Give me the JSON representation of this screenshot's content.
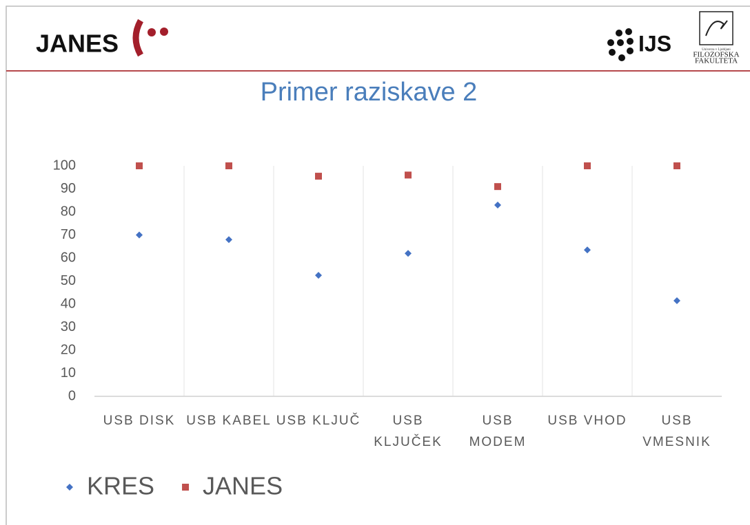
{
  "header": {
    "logo_left": "JANES",
    "logo_right": "IJS",
    "faculty_top": "Univerza v Ljubljani",
    "faculty_name_1": "FILOZOFSKA",
    "faculty_name_2": "FAKULTETA"
  },
  "chart_data": {
    "type": "scatter",
    "title": "Primer raziskave 2",
    "categories": [
      "USB DISK",
      "USB KABEL",
      "USB KLJUČ",
      "USB KLJUČEK",
      "USB MODEM",
      "USB VHOD",
      "USB VMESNIK"
    ],
    "series": [
      {
        "name": "KRES",
        "color": "#4472c4",
        "marker": "diamond",
        "values": [
          70,
          68,
          52.5,
          62,
          83,
          63.5,
          41.5
        ]
      },
      {
        "name": "JANES",
        "color": "#c0504d",
        "marker": "square",
        "values": [
          100,
          100,
          95.5,
          96,
          91,
          100,
          100
        ]
      }
    ],
    "ylim": [
      0,
      100
    ],
    "yticks": [
      0,
      10,
      20,
      30,
      40,
      50,
      60,
      70,
      80,
      90,
      100
    ],
    "legend": "bottom-left"
  }
}
